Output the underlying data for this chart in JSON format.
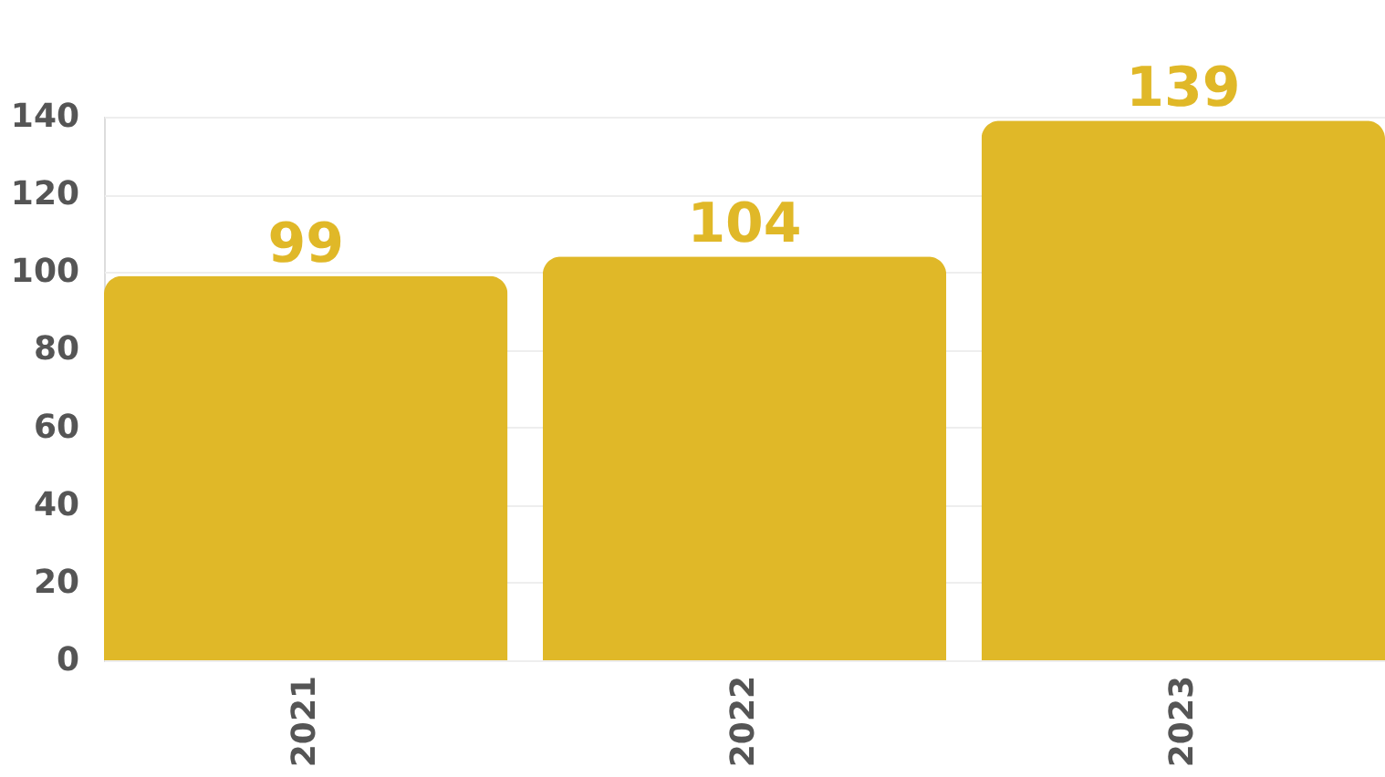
{
  "chart_data": {
    "type": "bar",
    "categories": [
      "2021",
      "2022",
      "2023"
    ],
    "values": [
      99,
      104,
      139
    ],
    "color": "#e0b828",
    "ylim": [
      0,
      140
    ],
    "yticks": [
      0,
      20,
      40,
      60,
      80,
      100,
      120,
      140
    ],
    "grid": "y",
    "data_labels": true
  }
}
